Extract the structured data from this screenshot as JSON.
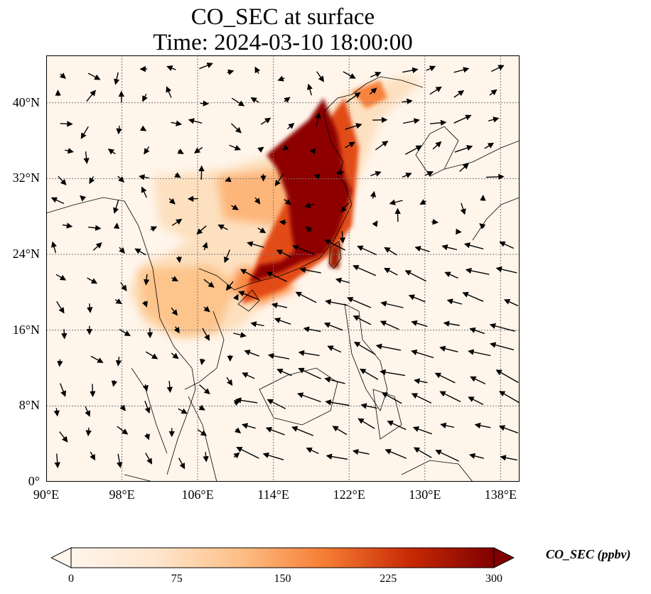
{
  "title": {
    "line1": "CO_SEC at surface",
    "line2": "Time: 2024-03-10 18:00:00"
  },
  "map": {
    "extent": {
      "lon_min": 90,
      "lon_max": 140,
      "lat_min": 0,
      "lat_max": 45
    },
    "lat_ticks": [
      {
        "value": 0,
        "label": "0°"
      },
      {
        "value": 8,
        "label": "8°N"
      },
      {
        "value": 16,
        "label": "16°N"
      },
      {
        "value": 24,
        "label": "24°N"
      },
      {
        "value": 32,
        "label": "32°N"
      },
      {
        "value": 40,
        "label": "40°N"
      }
    ],
    "lon_ticks": [
      {
        "value": 90,
        "label": "90°E"
      },
      {
        "value": 98,
        "label": "98°E"
      },
      {
        "value": 106,
        "label": "106°E"
      },
      {
        "value": 114,
        "label": "114°E"
      },
      {
        "value": 122,
        "label": "122°E"
      },
      {
        "value": 130,
        "label": "130°E"
      },
      {
        "value": 138,
        "label": "138°E"
      }
    ],
    "gridlines": true,
    "wind_vectors": true
  },
  "colorbar": {
    "label": "CO_SEC (ppbv)",
    "ticks": [
      "0",
      "75",
      "150",
      "225",
      "300"
    ],
    "min": 0,
    "max": 300,
    "extend": "both",
    "colors": [
      "#fff5eb",
      "#fdd5ab",
      "#fda35e",
      "#e9581a",
      "#b22005",
      "#7f0000"
    ]
  }
}
